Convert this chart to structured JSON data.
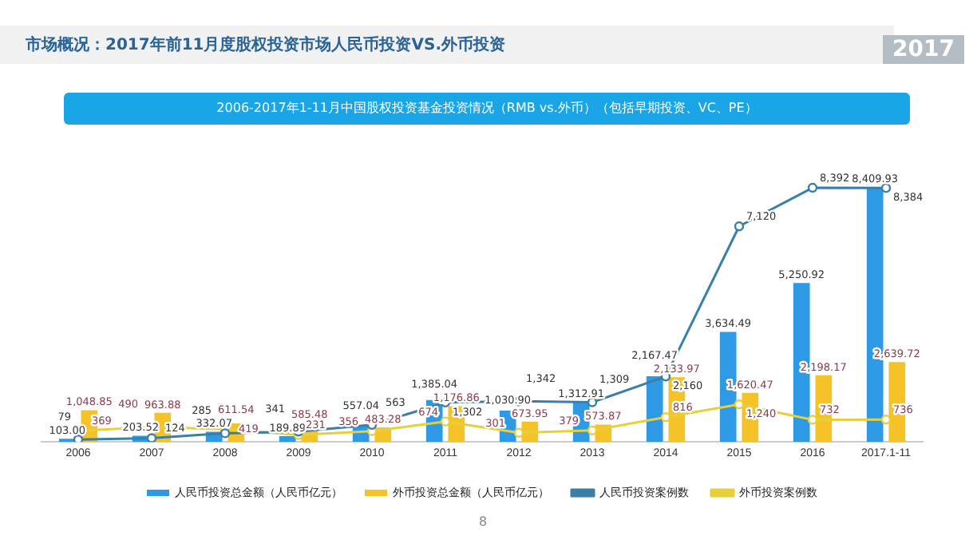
{
  "chart_data": {
    "type": "bar",
    "title": "市场概况：2017年前11月度股权投资市场人民币投资VS.外币投资",
    "subtitle": "2006-2017年1-11月中国股权投资基金投资情况（RMB vs.外币）（包括早期投资、VC、PE）",
    "annotations": [
      "2017",
      "8"
    ],
    "categories": [
      "2006",
      "2007",
      "2008",
      "2009",
      "2010",
      "2011",
      "2012",
      "2013",
      "2014",
      "2015",
      "2016",
      "2017.1-11"
    ],
    "legend": "bottom",
    "grid": false,
    "marker": "circle",
    "series": [
      {
        "name": "人民币投资总金额（人民币亿元）",
        "color": "#2e9ae6",
        "values": [
          103.0,
          203.52,
          332.07,
          189.89,
          557.04,
          1385.04,
          1030.9,
          1312.91,
          2167.47,
          3634.49,
          5250.92,
          8409.93
        ],
        "value_labels": [
          "103.00",
          "203.52",
          "332.07",
          "189.89",
          "557.04",
          "1,385.04",
          "1,030.90",
          "1,312.91",
          "2,167.47",
          "3,634.49",
          "5,250.92",
          "8,409.93"
        ]
      },
      {
        "name": "外币投资总金额（人民币亿元）",
        "color": "#f5c227",
        "values": [
          1048.85,
          963.88,
          611.54,
          585.48,
          483.28,
          1176.86,
          673.95,
          573.87,
          2133.97,
          1620.47,
          2198.17,
          2639.72
        ],
        "value_labels": [
          "1,048.85",
          "963.88",
          "611.54",
          "585.48",
          "483.28",
          "1,176.86",
          "673.95",
          "573.87",
          "2,133.97",
          "1,620.47",
          "2,198.17",
          "2,639.72"
        ]
      },
      {
        "name": "人民币投资案例数",
        "type": "line",
        "color": "#3a7fa8",
        "values": [
          79,
          124,
          285,
          341,
          563,
          1302,
          1342,
          1309,
          2160,
          7120,
          8392,
          8384
        ],
        "value_labels": [
          "79",
          "124",
          "285",
          "341",
          "563",
          "1,302",
          "1,342",
          "1,309",
          "2,160",
          "7,120",
          "8,392",
          "8,384"
        ]
      },
      {
        "name": "外币投资案例数",
        "type": "line",
        "color": "#e8cf3a",
        "values": [
          369,
          490,
          419,
          231,
          356,
          674,
          301,
          379,
          816,
          1240,
          732,
          736
        ],
        "value_labels": [
          "369",
          "490",
          "419",
          "231",
          "356",
          "674",
          "301",
          "379",
          "816",
          "1,240",
          "732",
          "736"
        ]
      }
    ]
  }
}
